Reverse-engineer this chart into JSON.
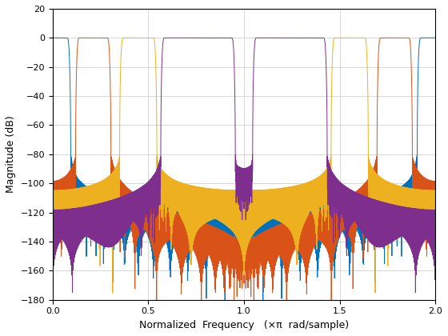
{
  "title": "",
  "xlabel": "Normalized  Frequency   (×π  rad/sample)",
  "ylabel": "Magnitude (dB)",
  "xlim": [
    0,
    2
  ],
  "ylim": [
    -180,
    20
  ],
  "yticks": [
    20,
    0,
    -20,
    -40,
    -60,
    -80,
    -100,
    -120,
    -140,
    -160,
    -180
  ],
  "xticks": [
    0,
    0.5,
    1.0,
    1.5,
    2.0
  ],
  "colors": [
    "#0072BD",
    "#D95319",
    "#EDB120",
    "#7E2F8E"
  ],
  "filter_specs": [
    {
      "type": "lowpass",
      "cutoff": 0.085
    },
    {
      "type": "bandpass",
      "low": 0.13,
      "high": 0.295
    },
    {
      "type": "bandpass",
      "low": 0.36,
      "high": 0.535
    },
    {
      "type": "bandpass",
      "low": 0.575,
      "high": 0.945
    }
  ],
  "num_taps": 512,
  "beta": 8.0,
  "worN": 8192,
  "background_color": "#ffffff",
  "grid_color": "#c8c8c8",
  "linewidth": 0.7
}
